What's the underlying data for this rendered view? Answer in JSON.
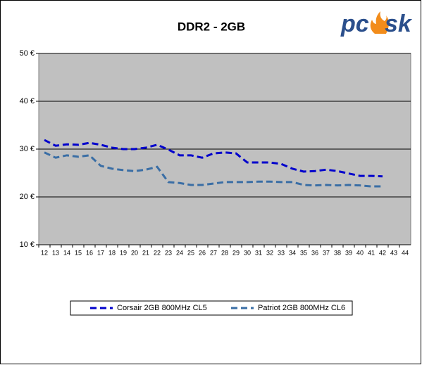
{
  "chart_data": {
    "type": "line",
    "title": "DDR2 - 2GB",
    "logo": [
      "pc",
      "sk"
    ],
    "categories": [
      "12",
      "13",
      "14",
      "15",
      "16",
      "17",
      "18",
      "19",
      "20",
      "21",
      "22",
      "23",
      "24",
      "25",
      "26",
      "27",
      "28",
      "29",
      "30",
      "31",
      "32",
      "33",
      "34",
      "35",
      "36",
      "37",
      "38",
      "39",
      "40",
      "41",
      "42",
      "43",
      "44"
    ],
    "series": [
      {
        "name": "Corsair 2GB 800MHz CL5",
        "color": "#0000cc",
        "values": [
          31.9,
          30.7,
          31.0,
          30.9,
          31.3,
          30.9,
          30.3,
          30.0,
          30.0,
          30.3,
          30.9,
          29.9,
          28.7,
          28.7,
          28.2,
          29.1,
          29.3,
          29.1,
          27.2,
          27.2,
          27.2,
          26.9,
          25.9,
          25.3,
          25.4,
          25.7,
          25.4,
          24.9,
          24.4,
          24.4,
          24.3,
          null,
          null
        ]
      },
      {
        "name": "Patriot 2GB 800MHz CL6",
        "color": "#3a6ea5",
        "values": [
          29.3,
          28.2,
          28.7,
          28.4,
          28.7,
          26.5,
          25.9,
          25.6,
          25.4,
          25.7,
          26.3,
          23.1,
          22.9,
          22.5,
          22.5,
          22.8,
          23.1,
          23.1,
          23.1,
          23.2,
          23.2,
          23.1,
          23.1,
          22.5,
          22.4,
          22.5,
          22.4,
          22.5,
          22.4,
          22.2,
          22.2,
          null,
          null
        ]
      }
    ],
    "ylim": [
      10,
      50
    ],
    "yticks": [
      {
        "value": 10,
        "label": "10 €"
      },
      {
        "value": 20,
        "label": "20 €"
      },
      {
        "value": 30,
        "label": "30 €"
      },
      {
        "value": 40,
        "label": "40 €"
      },
      {
        "value": 50,
        "label": "50 €"
      }
    ],
    "grid": true,
    "legend": "bottom"
  }
}
